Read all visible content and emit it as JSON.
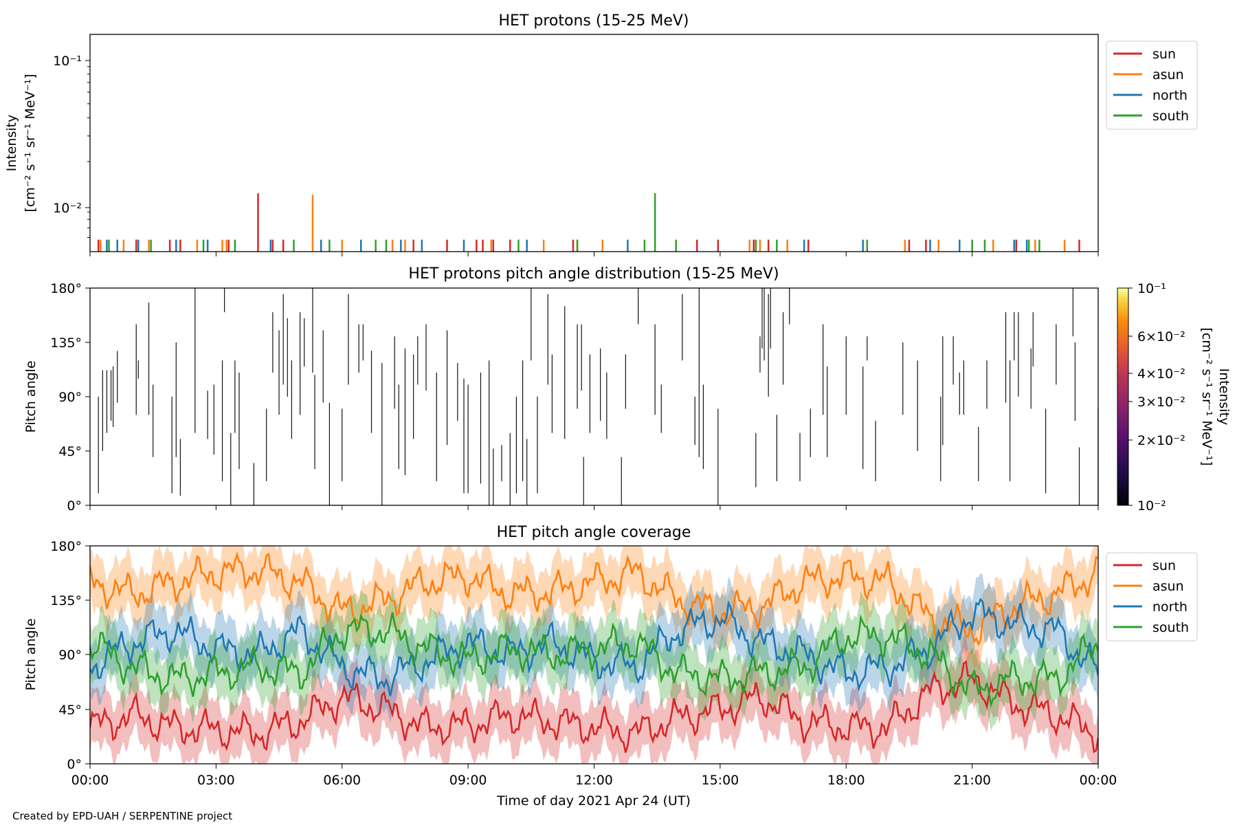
{
  "figure": {
    "footer": "Created by EPD-UAH / SERPENTINE project",
    "xlabel": "Time of day 2021 Apr 24 (UT)",
    "x_ticks": [
      "00:00",
      "03:00",
      "06:00",
      "09:00",
      "12:00",
      "15:00",
      "18:00",
      "21:00",
      "00:00"
    ]
  },
  "legend": [
    {
      "name": "sun",
      "color": "#d62728"
    },
    {
      "name": "asun",
      "color": "#ff7f0e"
    },
    {
      "name": "north",
      "color": "#1f77b4"
    },
    {
      "name": "south",
      "color": "#2ca02c"
    }
  ],
  "chart_data": [
    {
      "type": "line",
      "title": "HET protons (15-25 MeV)",
      "ylabel_line1": "Intensity",
      "ylabel_line2": "[cm⁻² s⁻¹ sr⁻¹ MeV⁻¹]",
      "y_scale": "log",
      "y_ticks": [
        "10⁻¹",
        "10⁻²"
      ],
      "ylim": [
        0.0048,
        0.15
      ],
      "xlim_hours": [
        0,
        24
      ],
      "legend_position": "right outside",
      "series": [
        {
          "name": "sun",
          "values": [
            [
              0.2,
              0.0058
            ],
            [
              1.1,
              0.0058
            ],
            [
              1.9,
              0.0058
            ],
            [
              2.15,
              0.0058
            ],
            [
              3.3,
              0.0058
            ],
            [
              4.0,
              0.0121
            ],
            [
              4.35,
              0.0058
            ],
            [
              4.6,
              0.0058
            ],
            [
              7.7,
              0.0058
            ],
            [
              8.5,
              0.0058
            ],
            [
              9.2,
              0.0058
            ],
            [
              9.35,
              0.0058
            ],
            [
              9.6,
              0.0058
            ],
            [
              10.0,
              0.0058
            ],
            [
              11.5,
              0.0058
            ],
            [
              14.45,
              0.0058
            ],
            [
              14.95,
              0.0058
            ],
            [
              15.8,
              0.0058
            ],
            [
              16.15,
              0.0058
            ],
            [
              17.1,
              0.0058
            ],
            [
              19.5,
              0.0058
            ],
            [
              19.9,
              0.0058
            ],
            [
              22.05,
              0.0058
            ],
            [
              23.55,
              0.0058
            ]
          ]
        },
        {
          "name": "asun",
          "values": [
            [
              0.25,
              0.0058
            ],
            [
              0.8,
              0.0058
            ],
            [
              1.4,
              0.0058
            ],
            [
              2.55,
              0.0058
            ],
            [
              3.15,
              0.0058
            ],
            [
              3.25,
              0.0058
            ],
            [
              5.3,
              0.0118
            ],
            [
              6.0,
              0.0058
            ],
            [
              7.2,
              0.0058
            ],
            [
              7.5,
              0.0058
            ],
            [
              9.55,
              0.0058
            ],
            [
              10.8,
              0.0058
            ],
            [
              11.6,
              0.0058
            ],
            [
              12.2,
              0.0058
            ],
            [
              15.7,
              0.0058
            ],
            [
              15.95,
              0.0058
            ],
            [
              16.6,
              0.0058
            ],
            [
              19.4,
              0.0058
            ],
            [
              20.2,
              0.0058
            ],
            [
              21.5,
              0.0058
            ],
            [
              22.5,
              0.0058
            ],
            [
              23.2,
              0.0058
            ]
          ]
        },
        {
          "name": "north",
          "values": [
            [
              0.4,
              0.0058
            ],
            [
              0.65,
              0.0058
            ],
            [
              1.15,
              0.0058
            ],
            [
              2.05,
              0.0058
            ],
            [
              2.8,
              0.0058
            ],
            [
              4.3,
              0.0058
            ],
            [
              5.5,
              0.0058
            ],
            [
              6.45,
              0.0058
            ],
            [
              7.4,
              0.0058
            ],
            [
              7.9,
              0.0058
            ],
            [
              8.9,
              0.0058
            ],
            [
              10.4,
              0.0058
            ],
            [
              12.8,
              0.0058
            ],
            [
              17.0,
              0.0058
            ],
            [
              18.4,
              0.0058
            ],
            [
              20.0,
              0.0058
            ],
            [
              20.7,
              0.0058
            ],
            [
              22.0,
              0.0058
            ],
            [
              22.3,
              0.0058
            ]
          ]
        },
        {
          "name": "south",
          "values": [
            [
              0.45,
              0.0058
            ],
            [
              1.45,
              0.0058
            ],
            [
              2.7,
              0.0058
            ],
            [
              3.45,
              0.0058
            ],
            [
              4.85,
              0.0058
            ],
            [
              5.7,
              0.0058
            ],
            [
              6.8,
              0.0058
            ],
            [
              7.05,
              0.0058
            ],
            [
              10.2,
              0.0058
            ],
            [
              11.6,
              0.0058
            ],
            [
              13.2,
              0.0058
            ],
            [
              13.45,
              0.0121
            ],
            [
              13.95,
              0.0058
            ],
            [
              15.85,
              0.0058
            ],
            [
              16.35,
              0.0058
            ],
            [
              18.5,
              0.0058
            ],
            [
              21.0,
              0.0058
            ],
            [
              21.3,
              0.0058
            ],
            [
              22.35,
              0.0058
            ],
            [
              22.6,
              0.0058
            ]
          ]
        }
      ]
    },
    {
      "type": "heatmap",
      "title": "HET protons pitch angle distribution (15-25 MeV)",
      "ylabel": "Pitch angle",
      "y_ticks": [
        "180°",
        "135°",
        "90°",
        "45°",
        "0°"
      ],
      "ylim": [
        0,
        180
      ],
      "xlim_hours": [
        0,
        24
      ],
      "colorbar": {
        "label_line1": "Intensity",
        "label_line2": "[cm⁻² s⁻¹ sr⁻¹ MeV⁻¹]",
        "scale": "log",
        "range": [
          0.01,
          0.1
        ],
        "ticks": [
          "10⁻¹",
          "6×10⁻²",
          "4×10⁻²",
          "3×10⁻²",
          "2×10⁻²",
          "10⁻²"
        ],
        "colormap": "inferno"
      },
      "segments": [
        [
          0.2,
          10,
          90
        ],
        [
          0.3,
          45,
          112
        ],
        [
          0.4,
          60,
          112
        ],
        [
          0.5,
          70,
          112
        ],
        [
          0.55,
          65,
          115
        ],
        [
          0.65,
          85,
          128
        ],
        [
          1.1,
          75,
          150
        ],
        [
          1.15,
          105,
          120
        ],
        [
          1.4,
          75,
          168
        ],
        [
          1.5,
          40,
          100
        ],
        [
          1.95,
          10,
          90
        ],
        [
          2.05,
          40,
          135
        ],
        [
          2.15,
          8,
          55
        ],
        [
          2.5,
          60,
          180
        ],
        [
          2.8,
          55,
          95
        ],
        [
          2.95,
          42,
          100
        ],
        [
          3.15,
          20,
          120
        ],
        [
          3.2,
          160,
          180
        ],
        [
          3.35,
          0,
          60
        ],
        [
          3.45,
          60,
          120
        ],
        [
          3.55,
          30,
          110
        ],
        [
          3.9,
          0,
          35
        ],
        [
          4.2,
          20,
          80
        ],
        [
          4.35,
          110,
          160
        ],
        [
          4.5,
          75,
          145
        ],
        [
          4.6,
          100,
          175
        ],
        [
          4.7,
          90,
          155
        ],
        [
          4.8,
          55,
          120
        ],
        [
          5.0,
          75,
          160
        ],
        [
          5.1,
          115,
          155
        ],
        [
          5.3,
          110,
          180
        ],
        [
          5.35,
          30,
          108
        ],
        [
          5.55,
          85,
          145
        ],
        [
          5.7,
          0,
          85
        ],
        [
          6.0,
          20,
          80
        ],
        [
          6.15,
          100,
          175
        ],
        [
          6.4,
          110,
          150
        ],
        [
          6.5,
          120,
          150
        ],
        [
          6.7,
          60,
          128
        ],
        [
          6.95,
          0,
          118
        ],
        [
          7.25,
          80,
          140
        ],
        [
          7.35,
          30,
          100
        ],
        [
          7.5,
          25,
          130
        ],
        [
          7.7,
          55,
          125
        ],
        [
          7.8,
          100,
          140
        ],
        [
          8.0,
          95,
          150
        ],
        [
          8.25,
          20,
          110
        ],
        [
          8.5,
          50,
          145
        ],
        [
          8.75,
          70,
          118
        ],
        [
          8.9,
          10,
          105
        ],
        [
          9.0,
          10,
          100
        ],
        [
          9.3,
          18,
          110
        ],
        [
          9.5,
          0,
          120
        ],
        [
          9.6,
          0,
          47
        ],
        [
          9.8,
          20,
          50
        ],
        [
          10.0,
          0,
          60
        ],
        [
          10.15,
          10,
          90
        ],
        [
          10.3,
          20,
          120
        ],
        [
          10.4,
          0,
          55
        ],
        [
          10.5,
          120,
          180
        ],
        [
          10.65,
          10,
          90
        ],
        [
          10.9,
          100,
          175
        ],
        [
          11.0,
          60,
          125
        ],
        [
          11.3,
          55,
          165
        ],
        [
          11.6,
          80,
          150
        ],
        [
          11.7,
          95,
          150
        ],
        [
          11.75,
          0,
          40
        ],
        [
          11.9,
          60,
          125
        ],
        [
          12.15,
          70,
          130
        ],
        [
          12.3,
          55,
          110
        ],
        [
          12.65,
          0,
          40
        ],
        [
          12.75,
          80,
          125
        ],
        [
          13.05,
          150,
          180
        ],
        [
          13.45,
          75,
          150
        ],
        [
          13.6,
          60,
          100
        ],
        [
          14.1,
          120,
          175
        ],
        [
          14.4,
          50,
          90
        ],
        [
          14.5,
          40,
          180
        ],
        [
          14.6,
          30,
          100
        ],
        [
          14.95,
          0,
          80
        ],
        [
          15.85,
          15,
          60
        ],
        [
          15.95,
          110,
          140
        ],
        [
          16.0,
          130,
          180
        ],
        [
          16.05,
          120,
          180
        ],
        [
          16.15,
          90,
          175
        ],
        [
          16.2,
          130,
          180
        ],
        [
          16.35,
          20,
          75
        ],
        [
          16.5,
          100,
          160
        ],
        [
          16.65,
          150,
          180
        ],
        [
          16.9,
          20,
          60
        ],
        [
          17.15,
          40,
          80
        ],
        [
          17.45,
          75,
          150
        ],
        [
          17.55,
          40,
          115
        ],
        [
          18.0,
          75,
          140
        ],
        [
          18.4,
          30,
          115
        ],
        [
          18.5,
          120,
          140
        ],
        [
          18.7,
          20,
          70
        ],
        [
          19.35,
          75,
          135
        ],
        [
          19.7,
          45,
          120
        ],
        [
          20.25,
          20,
          90
        ],
        [
          20.3,
          50,
          140
        ],
        [
          20.55,
          100,
          140
        ],
        [
          20.7,
          75,
          110
        ],
        [
          20.8,
          75,
          120
        ],
        [
          21.35,
          80,
          120
        ],
        [
          21.8,
          85,
          160
        ],
        [
          21.9,
          20,
          120
        ],
        [
          22.0,
          120,
          160
        ],
        [
          22.4,
          80,
          130
        ],
        [
          23.45,
          70,
          135
        ],
        [
          24.0,
          0,
          80
        ],
        [
          23.55,
          0,
          48
        ],
        [
          22.75,
          10,
          80
        ],
        [
          22.45,
          115,
          160
        ],
        [
          21.15,
          20,
          65
        ],
        [
          23.0,
          100,
          150
        ],
        [
          22.1,
          90,
          160
        ],
        [
          23.4,
          140,
          180
        ]
      ]
    },
    {
      "type": "line",
      "title": "HET pitch angle coverage",
      "ylabel": "Pitch angle",
      "y_ticks": [
        "180°",
        "135°",
        "90°",
        "45°",
        "0°"
      ],
      "ylim": [
        0,
        180
      ],
      "xlim_hours": [
        0,
        24
      ],
      "xlabel": "Time of day 2021 Apr 24 (UT)",
      "legend_position": "right outside",
      "shaded_band_halfwidth_deg": 22,
      "series": [
        {
          "name": "sun",
          "x": [
            0,
            1,
            2,
            3,
            4,
            5,
            6,
            7,
            8,
            9,
            10,
            11,
            12,
            13,
            14,
            15,
            16,
            17,
            18,
            19,
            20,
            21,
            22,
            23,
            24
          ],
          "values": [
            30,
            40,
            30,
            28,
            25,
            35,
            55,
            45,
            30,
            32,
            40,
            35,
            30,
            25,
            38,
            45,
            55,
            35,
            30,
            30,
            60,
            70,
            50,
            40,
            25
          ]
        },
        {
          "name": "asun",
          "x": [
            0,
            1,
            2,
            3,
            4,
            5,
            6,
            7,
            8,
            9,
            10,
            11,
            12,
            13,
            14,
            15,
            16,
            17,
            18,
            19,
            20,
            21,
            22,
            23,
            24
          ],
          "values": [
            150,
            140,
            150,
            158,
            160,
            150,
            125,
            135,
            150,
            155,
            140,
            142,
            150,
            158,
            135,
            125,
            130,
            150,
            155,
            150,
            120,
            110,
            130,
            140,
            158
          ]
        },
        {
          "name": "north",
          "x": [
            0,
            1,
            2,
            3,
            4,
            5,
            6,
            7,
            8,
            9,
            10,
            11,
            12,
            13,
            14,
            15,
            16,
            17,
            18,
            19,
            20,
            21,
            22,
            23,
            24
          ],
          "values": [
            80,
            100,
            110,
            95,
            90,
            110,
            80,
            70,
            85,
            100,
            90,
            100,
            85,
            80,
            110,
            120,
            100,
            90,
            75,
            80,
            95,
            125,
            115,
            110,
            75
          ]
        },
        {
          "name": "south",
          "x": [
            0,
            1,
            2,
            3,
            4,
            5,
            6,
            7,
            8,
            9,
            10,
            11,
            12,
            13,
            14,
            15,
            16,
            17,
            18,
            19,
            20,
            21,
            22,
            23,
            24
          ],
          "values": [
            100,
            80,
            70,
            75,
            80,
            75,
            110,
            110,
            95,
            85,
            95,
            90,
            95,
            100,
            75,
            70,
            75,
            80,
            105,
            105,
            90,
            60,
            70,
            70,
            100
          ]
        }
      ]
    }
  ]
}
